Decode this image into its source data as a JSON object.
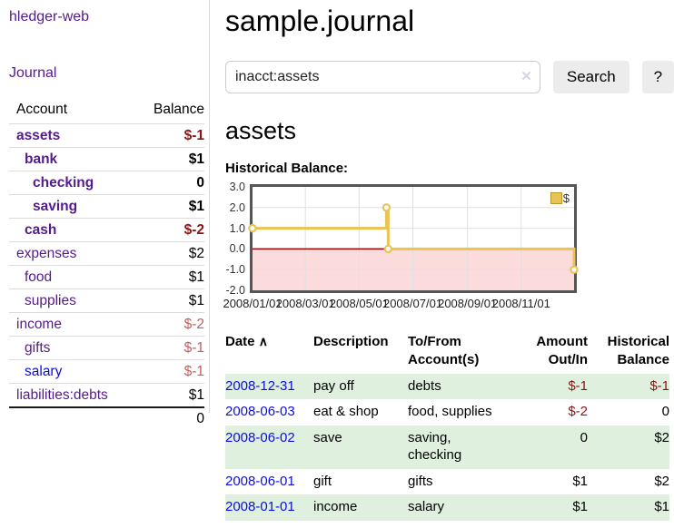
{
  "palette": {
    "purple": "#551a8b",
    "blue": "#0d0de0",
    "dark_red": "#8b1414",
    "soft_red": "#c2605f",
    "row_green": "#dff0df",
    "divider": "#dcdcdc",
    "chart_gold": "#e9c353",
    "gold_dark": "#b99729",
    "chart_pink": "#fbdbdb",
    "chart_zero": "#990000",
    "chart_grid": "#e0e0e0",
    "chart_border": "#555555"
  },
  "sidebar": {
    "brand": "hledger-web",
    "nav": [
      {
        "label": "Journal"
      }
    ],
    "accounts_table": {
      "headers": [
        "Account",
        "Balance"
      ],
      "rows": [
        {
          "name": "assets",
          "balance": "$-1",
          "level": 0,
          "bold": true,
          "balance_style": "negstrong"
        },
        {
          "name": "bank",
          "balance": "$1",
          "level": 1,
          "bold": true
        },
        {
          "name": "checking",
          "balance": "0",
          "level": 2,
          "bold": true
        },
        {
          "name": "saving",
          "balance": "$1",
          "level": 2,
          "bold": true
        },
        {
          "name": "cash",
          "balance": "$-2",
          "level": 1,
          "bold": true,
          "balance_style": "negstrong"
        },
        {
          "name": "expenses",
          "balance": "$2",
          "level": 0
        },
        {
          "name": "food",
          "balance": "$1",
          "level": 1
        },
        {
          "name": "supplies",
          "balance": "$1",
          "level": 1
        },
        {
          "name": "income",
          "balance": "$-2",
          "level": 0,
          "balance_style": "negsoft"
        },
        {
          "name": "gifts",
          "balance": "$-1",
          "level": 1,
          "balance_style": "negsoft"
        },
        {
          "name": "salary",
          "balance": "$-1",
          "level": 1,
          "name_style": "blue",
          "balance_style": "negsoft"
        },
        {
          "name": "liabilities:debts",
          "balance": "$1",
          "level": 0
        }
      ],
      "total": "0"
    }
  },
  "main": {
    "title": "sample.journal",
    "search": {
      "value": "inacct:assets",
      "clear_icon": "✕",
      "button": "Search",
      "help_button": "?"
    },
    "account_heading": "assets",
    "chart_label": "Historical Balance:"
  },
  "chart_data": {
    "type": "line",
    "step": true,
    "title": "Historical Balance",
    "x_domain": [
      "2008-01-01",
      "2008-12-31"
    ],
    "ylim": [
      -2,
      3
    ],
    "yticks": [
      3,
      2,
      1,
      0,
      -1,
      -2
    ],
    "xticks": [
      "2008/01/01",
      "2008/03/01",
      "2008/05/01",
      "2008/07/01",
      "2008/09/01",
      "2008/11/01"
    ],
    "series": [
      {
        "name": "$",
        "points": [
          [
            "2008-01-01",
            1
          ],
          [
            "2008-06-01",
            2
          ],
          [
            "2008-06-03",
            0
          ],
          [
            "2008-12-31",
            -1
          ]
        ]
      }
    ],
    "legend": "$",
    "legend_position": "top-right",
    "grid": true,
    "negative_fill": true
  },
  "table": {
    "headers": [
      "Date",
      "Description",
      "To/From Account(s)",
      "Amount Out/In",
      "Historical Balance"
    ],
    "date_sort_icon": "∧",
    "rows": [
      {
        "date": "2008-12-31",
        "description": "pay off",
        "accounts": "debts",
        "amount": "$-1",
        "balance": "$-1"
      },
      {
        "date": "2008-06-03",
        "description": "eat & shop",
        "accounts": "food, supplies",
        "amount": "$-2",
        "balance": "0"
      },
      {
        "date": "2008-06-02",
        "description": "save",
        "accounts": "saving,\nchecking",
        "amount": "0",
        "balance": "$2"
      },
      {
        "date": "2008-06-01",
        "description": "gift",
        "accounts": "gifts",
        "amount": "$1",
        "balance": "$2"
      },
      {
        "date": "2008-01-01",
        "description": "income",
        "accounts": "salary",
        "amount": "$1",
        "balance": "$1"
      }
    ]
  }
}
